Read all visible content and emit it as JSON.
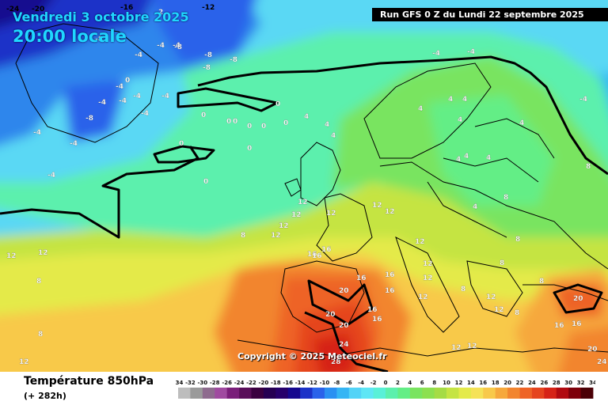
{
  "header": {
    "date": "Vendredi 3 octobre 2025",
    "time": "20:00 locale",
    "run": "Run GFS 0 Z du Lundi 22 septembre 2025"
  },
  "copyright": "Copyright © 2025 Meteociel.fr",
  "footer": {
    "title": "Température 850hPa",
    "subtitle": "(+ 282h)"
  },
  "legend": {
    "ticks": [
      "-34",
      "-32",
      "-30",
      "-28",
      "-26",
      "-24",
      "-22",
      "-20",
      "-18",
      "-16",
      "-14",
      "-12",
      "-10",
      "-8",
      "-6",
      "-4",
      "-2",
      "0",
      "2",
      "4",
      "6",
      "8",
      "10",
      "12",
      "14",
      "16",
      "18",
      "20",
      "22",
      "24",
      "26",
      "28",
      "30",
      "32",
      "34"
    ],
    "colors": [
      "#bdbdbd",
      "#9a9a9a",
      "#8e6b8e",
      "#a04aa0",
      "#7a1e7a",
      "#5a0e5a",
      "#3b0040",
      "#260052",
      "#27006b",
      "#16088f",
      "#1c32c8",
      "#2a62ea",
      "#2a90f2",
      "#35b5f4",
      "#52d3f7",
      "#5ee6f5",
      "#59f0d8",
      "#5cf0ad",
      "#63ee86",
      "#79e460",
      "#8ce050",
      "#a5dc45",
      "#c5e443",
      "#e4ea4a",
      "#f5e257",
      "#f8c94a",
      "#f6a83c",
      "#f2852f",
      "#ee6326",
      "#e5441e",
      "#d62317",
      "#b10a10",
      "#7d000a",
      "#4b0006"
    ]
  },
  "map_labels": [
    {
      "t": "-24",
      "c": "#000"
    },
    {
      "t": "-20",
      "c": "#000"
    },
    {
      "t": "-16",
      "c": "#000"
    },
    {
      "t": "-12",
      "c": "#000"
    },
    {
      "t": "-8",
      "c": "#fff"
    },
    {
      "t": "-8",
      "c": "#fff"
    },
    {
      "t": "-8",
      "c": "#fff"
    },
    {
      "t": "-8",
      "c": "#fff"
    },
    {
      "t": "-8",
      "c": "#fff"
    },
    {
      "t": "-8",
      "c": "#fff"
    },
    {
      "t": "-4",
      "c": "#fff"
    },
    {
      "t": "-4",
      "c": "#fff"
    },
    {
      "t": "-4",
      "c": "#fff"
    },
    {
      "t": "-4",
      "c": "#fff"
    },
    {
      "t": "-4",
      "c": "#fff"
    },
    {
      "t": "-4",
      "c": "#fff"
    },
    {
      "t": "-4",
      "c": "#fff"
    },
    {
      "t": "-4",
      "c": "#fff"
    },
    {
      "t": "-4",
      "c": "#fff"
    },
    {
      "t": "-4",
      "c": "#fff"
    },
    {
      "t": "-4",
      "c": "#fff"
    },
    {
      "t": "-4",
      "c": "#fff"
    },
    {
      "t": "-4",
      "c": "#fff"
    },
    {
      "t": "-4",
      "c": "#fff"
    },
    {
      "t": "-4",
      "c": "#fff"
    },
    {
      "t": "0",
      "c": "#fff"
    },
    {
      "t": "0",
      "c": "#fff"
    },
    {
      "t": "0",
      "c": "#fff"
    },
    {
      "t": "0",
      "c": "#fff"
    },
    {
      "t": "0",
      "c": "#fff"
    },
    {
      "t": "0",
      "c": "#fff"
    },
    {
      "t": "0",
      "c": "#fff"
    },
    {
      "t": "0",
      "c": "#fff"
    },
    {
      "t": "0",
      "c": "#fff"
    },
    {
      "t": "0",
      "c": "#fff"
    },
    {
      "t": "0",
      "c": "#fff"
    },
    {
      "t": "4",
      "c": "#fff"
    },
    {
      "t": "4",
      "c": "#fff"
    },
    {
      "t": "4",
      "c": "#fff"
    },
    {
      "t": "4",
      "c": "#fff"
    },
    {
      "t": "4",
      "c": "#fff"
    },
    {
      "t": "4",
      "c": "#fff"
    },
    {
      "t": "4",
      "c": "#fff"
    },
    {
      "t": "4",
      "c": "#fff"
    },
    {
      "t": "4",
      "c": "#fff"
    },
    {
      "t": "4",
      "c": "#fff"
    },
    {
      "t": "4",
      "c": "#fff"
    },
    {
      "t": "4",
      "c": "#fff"
    },
    {
      "t": "8",
      "c": "#fff"
    },
    {
      "t": "8",
      "c": "#fff"
    },
    {
      "t": "8",
      "c": "#fff"
    },
    {
      "t": "8",
      "c": "#fff"
    },
    {
      "t": "8",
      "c": "#fff"
    },
    {
      "t": "8",
      "c": "#fff"
    },
    {
      "t": "8",
      "c": "#fff"
    },
    {
      "t": "8",
      "c": "#fff"
    },
    {
      "t": "8",
      "c": "#fff"
    },
    {
      "t": "8",
      "c": "#fff"
    },
    {
      "t": "12",
      "c": "#fff"
    },
    {
      "t": "12",
      "c": "#fff"
    },
    {
      "t": "12",
      "c": "#fff"
    },
    {
      "t": "12",
      "c": "#fff"
    },
    {
      "t": "12",
      "c": "#fff"
    },
    {
      "t": "12",
      "c": "#fff"
    },
    {
      "t": "12",
      "c": "#fff"
    },
    {
      "t": "12",
      "c": "#fff"
    },
    {
      "t": "12",
      "c": "#fff"
    },
    {
      "t": "12",
      "c": "#fff"
    },
    {
      "t": "12",
      "c": "#fff"
    },
    {
      "t": "12",
      "c": "#fff"
    },
    {
      "t": "12",
      "c": "#fff"
    },
    {
      "t": "12",
      "c": "#fff"
    },
    {
      "t": "12",
      "c": "#fff"
    },
    {
      "t": "12",
      "c": "#fff"
    },
    {
      "t": "12",
      "c": "#fff"
    },
    {
      "t": "12",
      "c": "#fff"
    },
    {
      "t": "16",
      "c": "#fff"
    },
    {
      "t": "16",
      "c": "#fff"
    },
    {
      "t": "16",
      "c": "#fff"
    },
    {
      "t": "16",
      "c": "#fff"
    },
    {
      "t": "16",
      "c": "#fff"
    },
    {
      "t": "16",
      "c": "#fff"
    },
    {
      "t": "16",
      "c": "#fff"
    },
    {
      "t": "16",
      "c": "#fff"
    },
    {
      "t": "16",
      "c": "#fff"
    },
    {
      "t": "16",
      "c": "#fff"
    },
    {
      "t": "20",
      "c": "#fff"
    },
    {
      "t": "20",
      "c": "#fff"
    },
    {
      "t": "20",
      "c": "#fff"
    },
    {
      "t": "20",
      "c": "#fff"
    },
    {
      "t": "20",
      "c": "#fff"
    },
    {
      "t": "24",
      "c": "#fff"
    },
    {
      "t": "24",
      "c": "#fff"
    },
    {
      "t": "28",
      "c": "#fff"
    },
    {
      "t": "2",
      "c": "#fff"
    }
  ]
}
